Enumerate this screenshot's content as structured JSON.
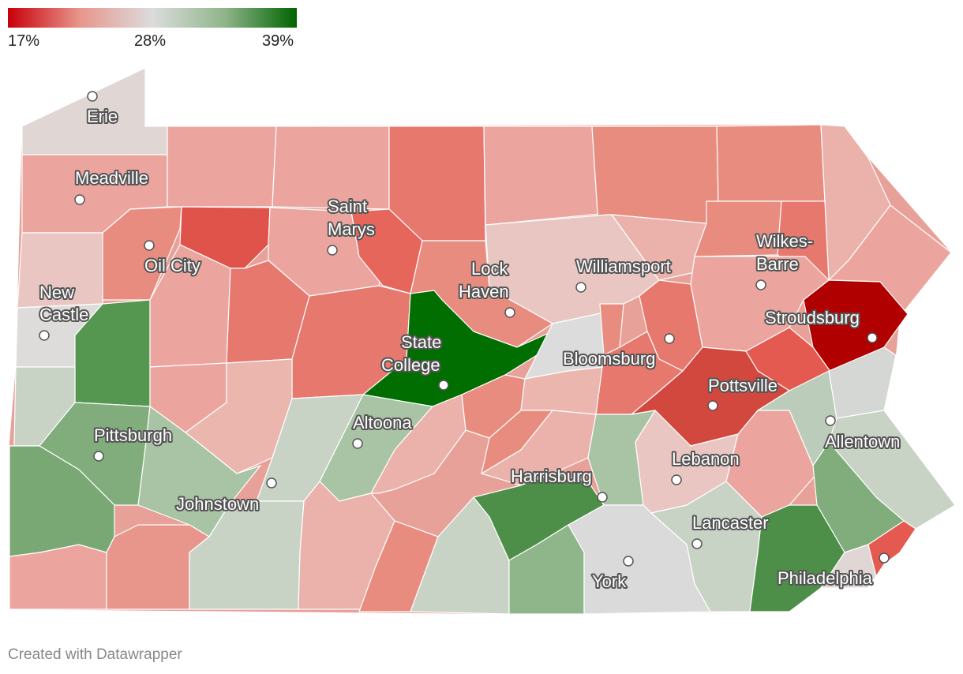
{
  "legend": {
    "min_label": "17%",
    "mid_label": "28%",
    "max_label": "39%",
    "colors": [
      "#c8000a",
      "#e8968c",
      "#dcdcdc",
      "#8fb58a",
      "#006400"
    ]
  },
  "cities": [
    {
      "name": "Erie"
    },
    {
      "name": "Meadville"
    },
    {
      "name": "Saint",
      "name2": "Marys"
    },
    {
      "name": "Oil City"
    },
    {
      "name": "Wilkes-",
      "name2": "Barre"
    },
    {
      "name": "Lock",
      "name2": "Haven"
    },
    {
      "name": "Williamsport"
    },
    {
      "name": "New",
      "name2": "Castle"
    },
    {
      "name": "Stroudsburg"
    },
    {
      "name": "State",
      "name2": "College"
    },
    {
      "name": "Bloomsburg"
    },
    {
      "name": "Pottsville"
    },
    {
      "name": "Altoona"
    },
    {
      "name": "Allentown"
    },
    {
      "name": "Pittsburgh"
    },
    {
      "name": "Lebanon"
    },
    {
      "name": "Harrisburg"
    },
    {
      "name": "Johnstown"
    },
    {
      "name": "Lancaster"
    },
    {
      "name": "York"
    },
    {
      "name": "Philadelphia"
    }
  ],
  "credit": "Created with Datawrapper"
}
